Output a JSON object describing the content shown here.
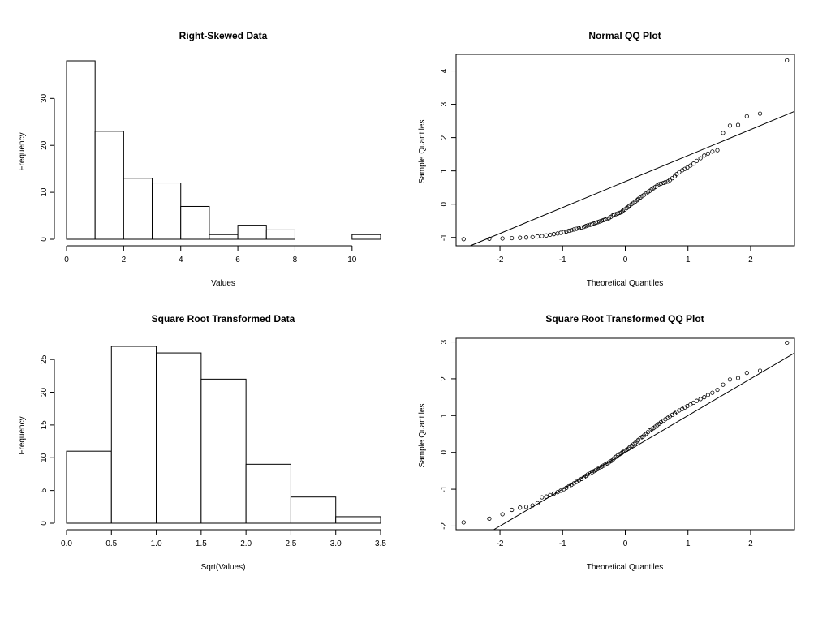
{
  "chart_data": [
    {
      "type": "bar",
      "histogram": true,
      "title": "Right-Skewed Data",
      "xlabel": "Values",
      "ylabel": "Frequency",
      "bins": [
        [
          0,
          1
        ],
        [
          1,
          2
        ],
        [
          2,
          3
        ],
        [
          3,
          4
        ],
        [
          4,
          5
        ],
        [
          5,
          6
        ],
        [
          6,
          7
        ],
        [
          7,
          8
        ],
        [
          8,
          9
        ],
        [
          9,
          10
        ],
        [
          10,
          11
        ]
      ],
      "values": [
        38,
        23,
        13,
        12,
        7,
        1,
        3,
        2,
        0,
        0,
        1
      ],
      "xlim": [
        0,
        11
      ],
      "ylim": [
        0,
        38
      ],
      "xticks": [
        0,
        2,
        4,
        6,
        8,
        10
      ],
      "xtick_labels": [
        "0",
        "2",
        "4",
        "6",
        "8",
        "10"
      ],
      "yticks": [
        0,
        10,
        20,
        30
      ],
      "ytick_labels": [
        "0",
        "10",
        "20",
        "30"
      ],
      "grid": false
    },
    {
      "type": "scatter",
      "title": "Normal QQ Plot",
      "xlabel": "Theoretical Quantiles",
      "ylabel": "Sample Quantiles",
      "xlim": [
        -2.7,
        2.7
      ],
      "ylim": [
        -1.25,
        4.5
      ],
      "xticks": [
        -2,
        -1,
        0,
        1,
        2
      ],
      "xtick_labels": [
        "-2",
        "-1",
        "0",
        "1",
        "2"
      ],
      "yticks": [
        -1,
        0,
        1,
        2,
        3,
        4
      ],
      "ytick_labels": [
        "-1",
        "0",
        "1",
        "2",
        "3",
        "4"
      ],
      "x": [
        -2.58,
        -2.17,
        -1.96,
        -1.81,
        -1.68,
        -1.58,
        -1.48,
        -1.4,
        -1.33,
        -1.26,
        -1.2,
        -1.14,
        -1.08,
        -1.03,
        -0.98,
        -0.94,
        -0.9,
        -0.86,
        -0.82,
        -0.78,
        -0.74,
        -0.7,
        -0.66,
        -0.63,
        -0.6,
        -0.56,
        -0.53,
        -0.5,
        -0.47,
        -0.44,
        -0.41,
        -0.38,
        -0.35,
        -0.32,
        -0.29,
        -0.26,
        -0.23,
        -0.2,
        -0.18,
        -0.15,
        -0.12,
        -0.09,
        -0.06,
        -0.04,
        -0.01,
        0.02,
        0.05,
        0.07,
        0.1,
        0.13,
        0.16,
        0.19,
        0.21,
        0.24,
        0.27,
        0.3,
        0.33,
        0.36,
        0.39,
        0.42,
        0.45,
        0.48,
        0.51,
        0.54,
        0.57,
        0.61,
        0.64,
        0.68,
        0.71,
        0.75,
        0.79,
        0.82,
        0.86,
        0.91,
        0.95,
        0.99,
        1.04,
        1.09,
        1.14,
        1.2,
        1.26,
        1.32,
        1.39,
        1.47,
        1.56,
        1.67,
        1.8,
        1.94,
        2.15,
        2.58
      ],
      "y": [
        -1.05,
        -1.04,
        -1.03,
        -1.02,
        -1.01,
        -1.0,
        -0.99,
        -0.97,
        -0.96,
        -0.94,
        -0.92,
        -0.9,
        -0.88,
        -0.86,
        -0.84,
        -0.82,
        -0.8,
        -0.78,
        -0.76,
        -0.74,
        -0.72,
        -0.7,
        -0.68,
        -0.66,
        -0.64,
        -0.62,
        -0.6,
        -0.58,
        -0.56,
        -0.54,
        -0.52,
        -0.5,
        -0.48,
        -0.46,
        -0.44,
        -0.42,
        -0.38,
        -0.34,
        -0.32,
        -0.3,
        -0.28,
        -0.26,
        -0.24,
        -0.2,
        -0.16,
        -0.12,
        -0.08,
        -0.04,
        0.0,
        0.04,
        0.08,
        0.12,
        0.16,
        0.2,
        0.24,
        0.28,
        0.32,
        0.36,
        0.4,
        0.44,
        0.48,
        0.52,
        0.56,
        0.6,
        0.62,
        0.64,
        0.66,
        0.68,
        0.72,
        0.78,
        0.84,
        0.9,
        0.96,
        1.02,
        1.06,
        1.1,
        1.16,
        1.22,
        1.3,
        1.38,
        1.46,
        1.52,
        1.58,
        1.62,
        2.14,
        2.36,
        2.38,
        2.64,
        2.72,
        4.32
      ],
      "reference_line": {
        "intercept": 0.68,
        "slope": 0.78
      }
    },
    {
      "type": "bar",
      "histogram": true,
      "title": "Square Root Transformed Data",
      "xlabel": "Sqrt(Values)",
      "ylabel": "Frequency",
      "bins": [
        [
          0,
          0.5
        ],
        [
          0.5,
          1.0
        ],
        [
          1.0,
          1.5
        ],
        [
          1.5,
          2.0
        ],
        [
          2.0,
          2.5
        ],
        [
          2.5,
          3.0
        ],
        [
          3.0,
          3.5
        ]
      ],
      "values": [
        11,
        27,
        26,
        22,
        9,
        4,
        1
      ],
      "xlim": [
        0,
        3.5
      ],
      "ylim": [
        0,
        27
      ],
      "xticks": [
        0,
        0.5,
        1.0,
        1.5,
        2.0,
        2.5,
        3.0,
        3.5
      ],
      "xtick_labels": [
        "0.0",
        "0.5",
        "1.0",
        "1.5",
        "2.0",
        "2.5",
        "3.0",
        "3.5"
      ],
      "yticks": [
        0,
        5,
        10,
        15,
        20,
        25
      ],
      "ytick_labels": [
        "0",
        "5",
        "10",
        "15",
        "20",
        "25"
      ],
      "grid": false
    },
    {
      "type": "scatter",
      "title": "Square Root Transformed QQ Plot",
      "xlabel": "Theoretical Quantiles",
      "ylabel": "Sample Quantiles",
      "xlim": [
        -2.7,
        2.7
      ],
      "ylim": [
        -2.1,
        3.1
      ],
      "xticks": [
        -2,
        -1,
        0,
        1,
        2
      ],
      "xtick_labels": [
        "-2",
        "-1",
        "0",
        "1",
        "2"
      ],
      "yticks": [
        -2,
        -1,
        0,
        1,
        2,
        3
      ],
      "ytick_labels": [
        "-2",
        "-1",
        "0",
        "1",
        "2",
        "3"
      ],
      "x": [
        -2.58,
        -2.17,
        -1.96,
        -1.81,
        -1.68,
        -1.58,
        -1.48,
        -1.4,
        -1.33,
        -1.26,
        -1.2,
        -1.14,
        -1.08,
        -1.03,
        -0.98,
        -0.94,
        -0.9,
        -0.86,
        -0.82,
        -0.78,
        -0.74,
        -0.7,
        -0.66,
        -0.63,
        -0.6,
        -0.56,
        -0.53,
        -0.5,
        -0.47,
        -0.44,
        -0.41,
        -0.38,
        -0.35,
        -0.32,
        -0.29,
        -0.26,
        -0.23,
        -0.2,
        -0.18,
        -0.15,
        -0.12,
        -0.09,
        -0.06,
        -0.04,
        -0.01,
        0.02,
        0.05,
        0.07,
        0.1,
        0.13,
        0.16,
        0.19,
        0.21,
        0.24,
        0.27,
        0.3,
        0.33,
        0.36,
        0.39,
        0.42,
        0.45,
        0.48,
        0.51,
        0.54,
        0.57,
        0.61,
        0.64,
        0.68,
        0.71,
        0.75,
        0.79,
        0.82,
        0.86,
        0.91,
        0.95,
        0.99,
        1.04,
        1.09,
        1.14,
        1.2,
        1.26,
        1.32,
        1.39,
        1.47,
        1.56,
        1.67,
        1.8,
        1.94,
        2.15,
        2.58
      ],
      "y": [
        -1.9,
        -1.8,
        -1.68,
        -1.56,
        -1.5,
        -1.48,
        -1.44,
        -1.38,
        -1.22,
        -1.2,
        -1.16,
        -1.12,
        -1.08,
        -1.04,
        -1.0,
        -0.96,
        -0.92,
        -0.88,
        -0.84,
        -0.8,
        -0.76,
        -0.72,
        -0.68,
        -0.64,
        -0.6,
        -0.57,
        -0.54,
        -0.51,
        -0.48,
        -0.45,
        -0.42,
        -0.39,
        -0.36,
        -0.33,
        -0.3,
        -0.27,
        -0.24,
        -0.2,
        -0.16,
        -0.12,
        -0.08,
        -0.05,
        -0.02,
        0.01,
        0.04,
        0.07,
        0.1,
        0.14,
        0.18,
        0.22,
        0.26,
        0.3,
        0.34,
        0.38,
        0.42,
        0.46,
        0.5,
        0.55,
        0.6,
        0.63,
        0.66,
        0.7,
        0.74,
        0.78,
        0.82,
        0.86,
        0.9,
        0.94,
        0.98,
        1.02,
        1.06,
        1.1,
        1.14,
        1.18,
        1.22,
        1.26,
        1.3,
        1.35,
        1.4,
        1.45,
        1.5,
        1.56,
        1.62,
        1.7,
        1.84,
        1.98,
        2.02,
        2.16,
        2.22,
        2.98
      ],
      "reference_line": {
        "intercept": 0.0,
        "slope": 1.0
      }
    }
  ]
}
